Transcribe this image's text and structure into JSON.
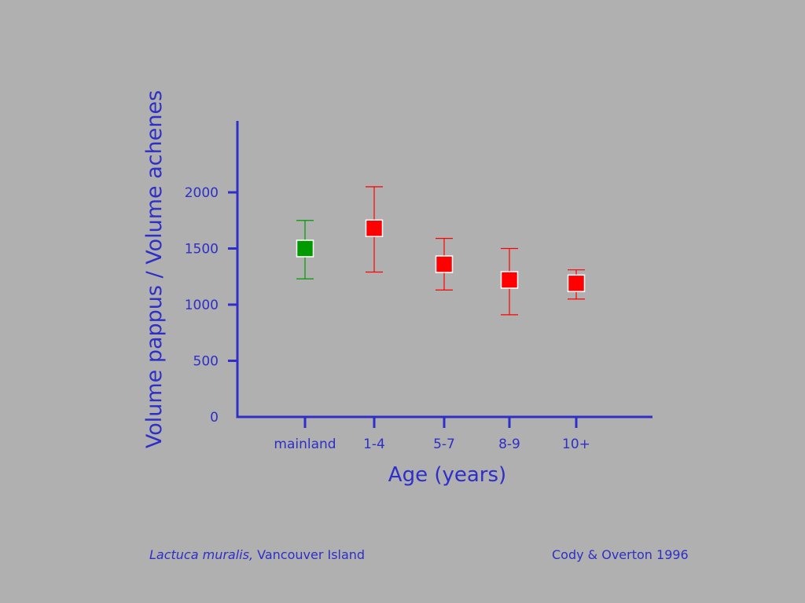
{
  "chart_data": {
    "type": "scatter",
    "ylabel": "Volume pappus / Volume achenes",
    "xlabel": "Age (years)",
    "ylim": [
      0,
      2600
    ],
    "yticks": [
      0,
      500,
      1000,
      1500,
      2000
    ],
    "categories": [
      "mainland",
      "1-4",
      "5-7",
      "8-9",
      "10+"
    ],
    "points": [
      {
        "category": "mainland",
        "value": 1500,
        "low": 1230,
        "high": 1750,
        "color": "#009900"
      },
      {
        "category": "1-4",
        "value": 1680,
        "low": 1290,
        "high": 2050,
        "color": "#ff0000"
      },
      {
        "category": "5-7",
        "value": 1360,
        "low": 1130,
        "high": 1590,
        "color": "#ff0000"
      },
      {
        "category": "8-9",
        "value": 1220,
        "low": 910,
        "high": 1500,
        "color": "#ff0000"
      },
      {
        "category": "10+",
        "value": 1190,
        "low": 1050,
        "high": 1310,
        "color": "#ff0000"
      }
    ],
    "grid": false,
    "legend": "none"
  },
  "colors": {
    "axis": "#2e2ec8",
    "text": "#2e2ec8",
    "background": "#b0b0b0",
    "marker_border": "#ffffff"
  },
  "footer": {
    "species": "Lactuca muralis,",
    "location": " Vancouver Island",
    "citation": "Cody & Overton 1996"
  }
}
